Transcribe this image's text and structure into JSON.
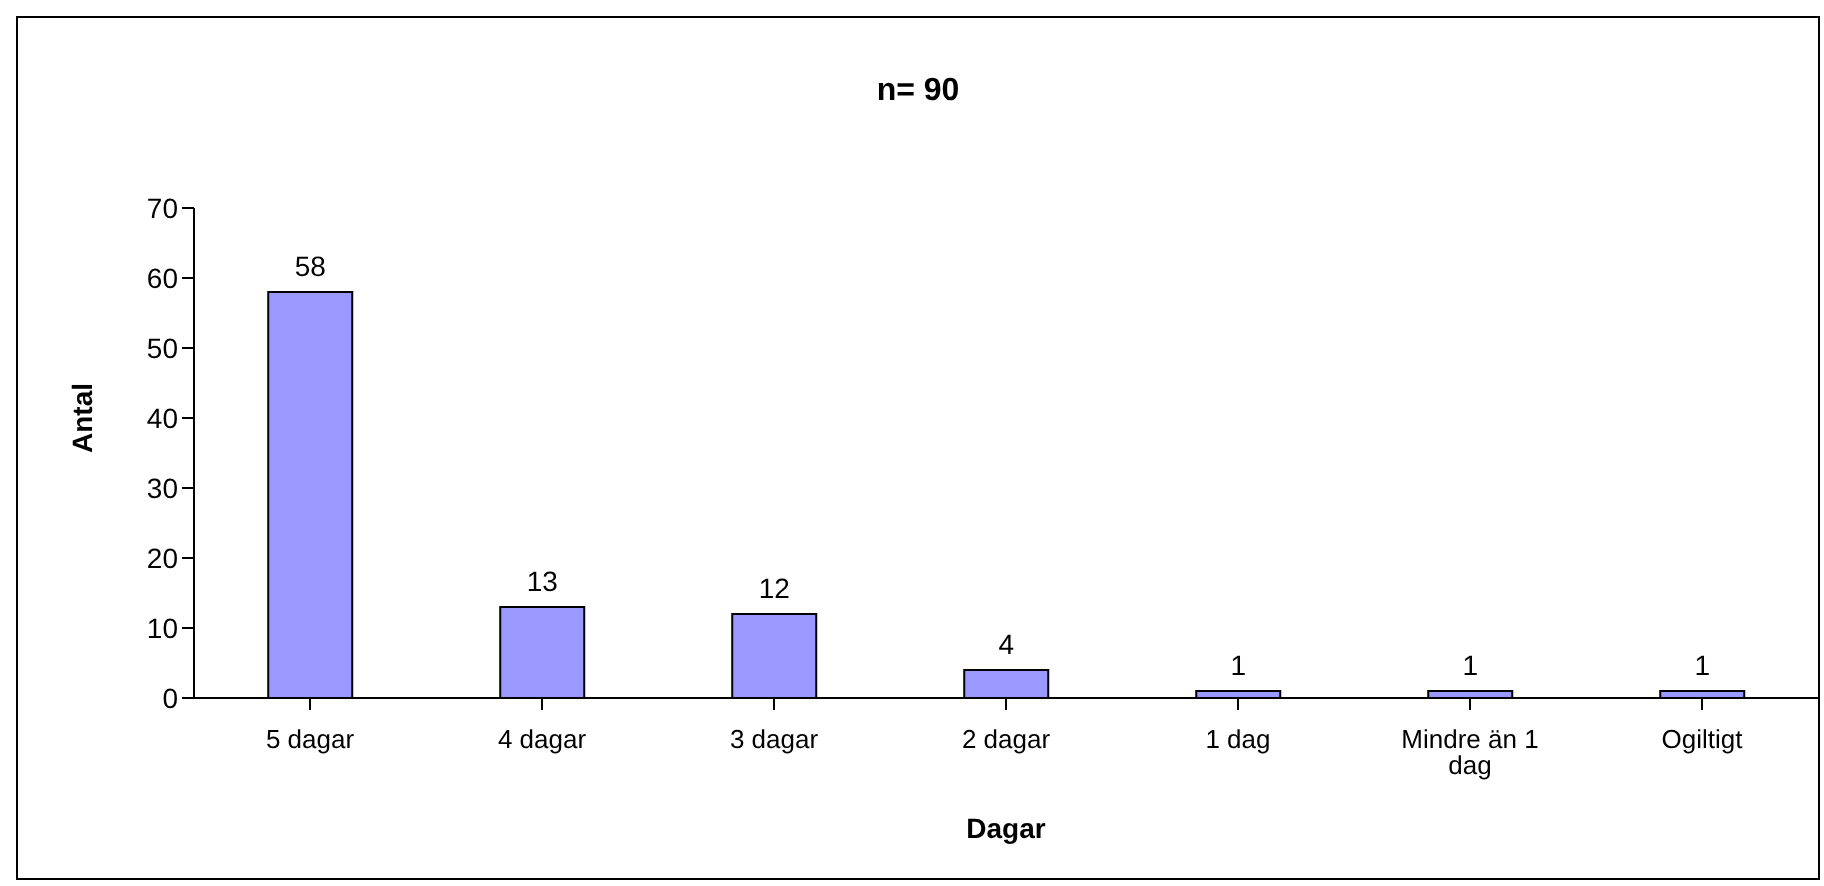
{
  "chart_data": {
    "type": "bar",
    "title": "n= 90",
    "xlabel": "Dagar",
    "ylabel": "Antal",
    "categories": [
      "5 dagar",
      "4 dagar",
      "3 dagar",
      "2 dagar",
      "1 dag",
      "Mindre än 1 dag",
      "Ogiltigt"
    ],
    "values": [
      58,
      13,
      12,
      4,
      1,
      1,
      1
    ],
    "color": "#9999ff",
    "ylim": [
      0,
      70
    ],
    "yticks": [
      0,
      10,
      20,
      30,
      40,
      50,
      60,
      70
    ],
    "grid": false,
    "data_labels": true
  }
}
